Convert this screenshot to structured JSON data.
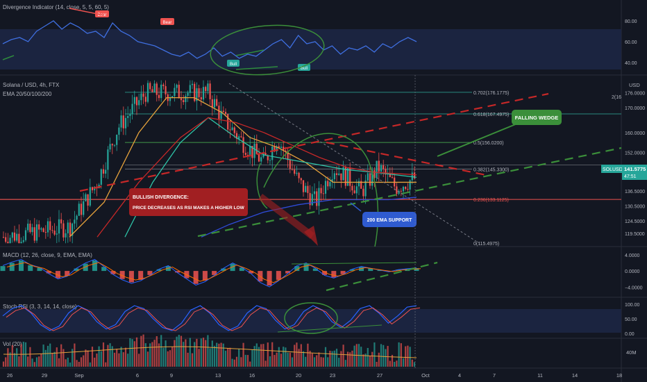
{
  "chart_data": {
    "type": "candlestick",
    "symbol": "Solana / USD, 4h, FTX",
    "ema_label": "EMA 20/50/100/200",
    "last_price": "141.5775",
    "countdown": "47:51",
    "ticker": "SOLUSD",
    "price_axis": {
      "ticks": [
        "176.0000",
        "170.0000",
        "160.0000",
        "152.0000",
        "144.0000",
        "136.5000",
        "130.5000",
        "124.5000",
        "119.5000"
      ],
      "currency": "USD",
      "ylim": [
        115,
        182
      ]
    },
    "time_axis": {
      "ticks": [
        "26",
        "29",
        "Sep",
        "6",
        "9",
        "13",
        "16",
        "20",
        "23",
        "27",
        "Oct",
        "4",
        "7",
        "11",
        "14",
        "18"
      ]
    },
    "fib_levels": [
      {
        "label": "0.702(176.1775)",
        "value": 176.18
      },
      {
        "label": "0.618(167.4975)",
        "value": 167.5
      },
      {
        "label": "0.5(156.0200)",
        "value": 156.02
      },
      {
        "label": "0.382(145.3300)",
        "value": 145.33
      },
      {
        "label": "0.236(133.1125)",
        "value": 133.11
      },
      {
        "label": "0(115.4975)",
        "value": 115.5
      }
    ],
    "fib_extra_label": "2(16",
    "annotations": {
      "falling_wedge": "FALLING WEDGE",
      "bullish_title": "BULLISH DIVERGENCE:",
      "bullish_body": "PRICE DECREASES AS RSI MAKES A HIGHER LOW",
      "ema_support": "200 EMA SUPPORT",
      "bear1": "Bear",
      "bear2": "Bear",
      "bull1": "Bull",
      "bull2": "Bull"
    },
    "divergence_panel": {
      "title": "Divergence Indicator (14, close, 5, 5, 60, 5)",
      "ticks": [
        "80.00",
        "60.00",
        "40.00"
      ],
      "ylim": [
        30,
        90
      ],
      "rsi": [
        58,
        62,
        64,
        60,
        70,
        75,
        80,
        72,
        78,
        74,
        68,
        70,
        64,
        78,
        70,
        66,
        60,
        58,
        56,
        52,
        48,
        46,
        50,
        44,
        48,
        54,
        46,
        50,
        44,
        48,
        46,
        52,
        58,
        62,
        54,
        66,
        58,
        60,
        52,
        56,
        48,
        54,
        52,
        56,
        50,
        58,
        54,
        60,
        64,
        60
      ]
    },
    "macd_panel": {
      "title": "MACD (12, 26, close, 9, EMA, EMA)",
      "ticks": [
        "4.0000",
        "0.0000",
        "−4.0000"
      ],
      "ylim": [
        -6,
        5
      ],
      "hist": [
        1.2,
        2.0,
        2.6,
        1.4,
        0.8,
        -0.6,
        -1.8,
        -1.2,
        0.6,
        1.8,
        2.6,
        1.0,
        -0.8,
        -2.0,
        -2.8,
        -2.2,
        -1.0,
        0.4,
        1.2,
        -0.4,
        -1.8,
        -3.2,
        -2.4,
        -1.0,
        0.6,
        1.8,
        0.8,
        -0.6,
        -2.6,
        -3.6,
        -2.2,
        -0.6,
        1.2,
        1.8,
        0.6,
        -1.0,
        -1.6,
        -0.8,
        0.4,
        1.0,
        0.6,
        0.2,
        -0.2,
        0.3,
        0.5,
        0.7
      ]
    },
    "stoch_panel": {
      "title": "Stoch RSI (3, 3, 14, 14, close)",
      "ticks": [
        "100.00",
        "50.00",
        "0.00"
      ],
      "ylim": [
        0,
        100
      ],
      "k": [
        60,
        85,
        95,
        70,
        30,
        10,
        25,
        70,
        95,
        80,
        40,
        15,
        30,
        75,
        95,
        85,
        50,
        20,
        10,
        35,
        80,
        95,
        70,
        30,
        10,
        25,
        70,
        95,
        85,
        45,
        15,
        30,
        75,
        95,
        80,
        40,
        20,
        45,
        85,
        95,
        70,
        35,
        60,
        90,
        95
      ]
    },
    "volume_panel": {
      "title": "Vol (20)",
      "ticks": [
        "40M"
      ]
    },
    "colors": {
      "background": "#131722",
      "up": "#26a69a",
      "down": "#ef5350",
      "rsi": "#3f6fe0",
      "ema20": "#e6a23c",
      "ema50": "#2ec4a8",
      "ema100": "#c62828",
      "ema200": "#2f4bd8",
      "wedge": "#2e8b3d",
      "annotation_red": "#a11f22",
      "annotation_green": "#3b8f3a",
      "annotation_blue": "#2f5bd0"
    }
  }
}
